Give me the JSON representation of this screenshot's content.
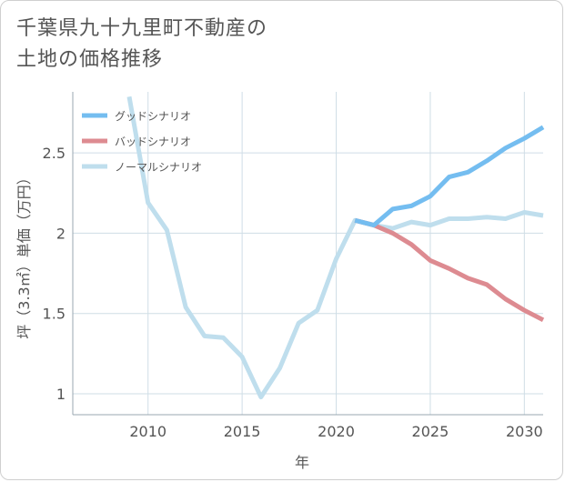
{
  "page": {
    "title": "千葉県九十九里町不動産の\n土地の価格推移"
  },
  "chart_data": {
    "type": "line",
    "title": "千葉県九十九里町不動産の土地の価格推移",
    "xlabel": "年",
    "ylabel": "坪（3.3㎡）単価（万円）",
    "xlim": [
      2006,
      2031
    ],
    "ylim": [
      0.87,
      2.88
    ],
    "x_ticks": [
      2010,
      2015,
      2020,
      2025,
      2030
    ],
    "y_ticks": [
      1,
      1.5,
      2,
      2.5
    ],
    "grid": true,
    "legend_position": "top-left",
    "series": [
      {
        "name": "グッドシナリオ",
        "color": "#74bdf0",
        "x": [
          2021,
          2022,
          2023,
          2024,
          2025,
          2026,
          2027,
          2028,
          2029,
          2030,
          2031
        ],
        "y": [
          2.08,
          2.05,
          2.15,
          2.17,
          2.23,
          2.35,
          2.38,
          2.45,
          2.53,
          2.59,
          2.66
        ]
      },
      {
        "name": "バッドシナリオ",
        "color": "#dd8b91",
        "x": [
          2021,
          2022,
          2023,
          2024,
          2025,
          2026,
          2027,
          2028,
          2029,
          2030,
          2031
        ],
        "y": [
          2.08,
          2.05,
          2.0,
          1.93,
          1.83,
          1.78,
          1.72,
          1.68,
          1.59,
          1.52,
          1.46
        ]
      },
      {
        "name": "ノーマルシナリオ",
        "color": "#bfdeed",
        "x": [
          2009,
          2010,
          2011,
          2012,
          2013,
          2014,
          2015,
          2016,
          2017,
          2018,
          2019,
          2020,
          2021,
          2022,
          2023,
          2024,
          2025,
          2026,
          2027,
          2028,
          2029,
          2030,
          2031
        ],
        "y": [
          2.85,
          2.19,
          2.02,
          1.54,
          1.36,
          1.35,
          1.23,
          0.98,
          1.16,
          1.44,
          1.52,
          1.84,
          2.08,
          2.05,
          2.03,
          2.07,
          2.05,
          2.09,
          2.09,
          2.1,
          2.09,
          2.13,
          2.11
        ]
      }
    ]
  }
}
